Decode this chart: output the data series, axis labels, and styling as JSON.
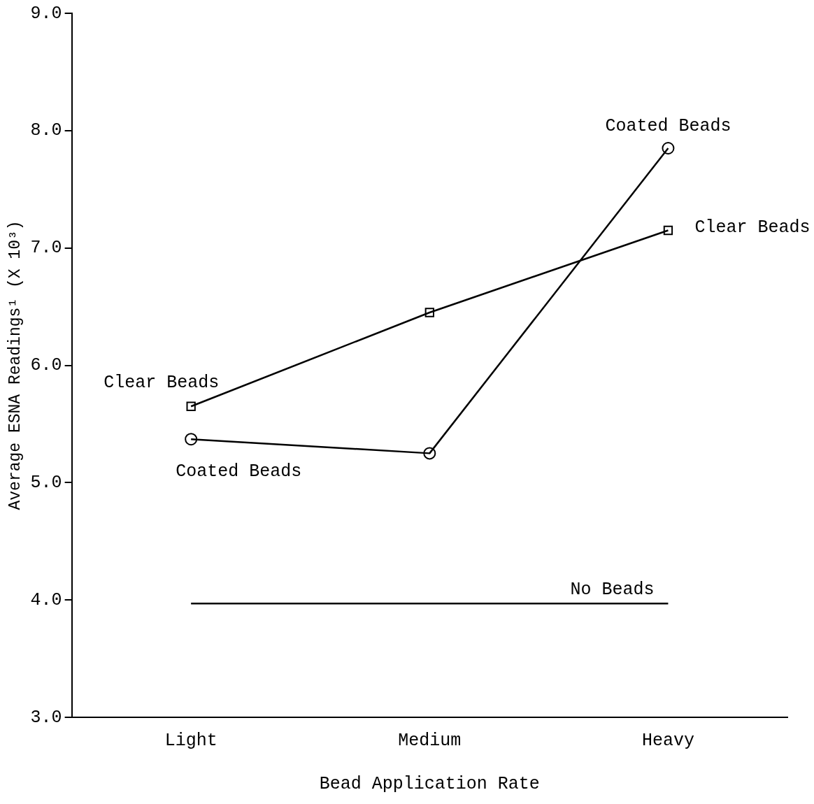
{
  "chart_data": {
    "type": "line",
    "xlabel": "Bead Application Rate",
    "ylabel": "Average ESNA Readings¹ (X 10³)",
    "categories": [
      "Light",
      "Medium",
      "Heavy"
    ],
    "series": [
      {
        "name": "Coated Beads",
        "color": "#000000",
        "marker": "circle",
        "values": [
          5.37,
          5.25,
          7.85
        ]
      },
      {
        "name": "Clear Beads",
        "color": "#000000",
        "marker": "square",
        "values": [
          5.65,
          6.45,
          7.15
        ]
      },
      {
        "name": "No Beads",
        "color": "#000000",
        "marker": "none",
        "values": [
          3.97,
          3.97,
          3.97
        ]
      }
    ],
    "annotations": [
      {
        "text": "Clear Beads",
        "x": "Light",
        "y": 5.65
      },
      {
        "text": "Coated Beads",
        "x": "Light",
        "y": 5.37
      }
    ],
    "ylim": [
      3,
      9
    ],
    "yticks": [
      {
        "value": 3,
        "label": "3.0"
      },
      {
        "value": 4,
        "label": "4.0"
      },
      {
        "value": 5,
        "label": "5.0"
      },
      {
        "value": 6,
        "label": "6.0"
      },
      {
        "value": 7,
        "label": "7.0"
      },
      {
        "value": 8,
        "label": "8.0"
      },
      {
        "value": 9,
        "label": "9.0"
      }
    ],
    "grid": false,
    "legend": false,
    "line_style": "solid"
  }
}
